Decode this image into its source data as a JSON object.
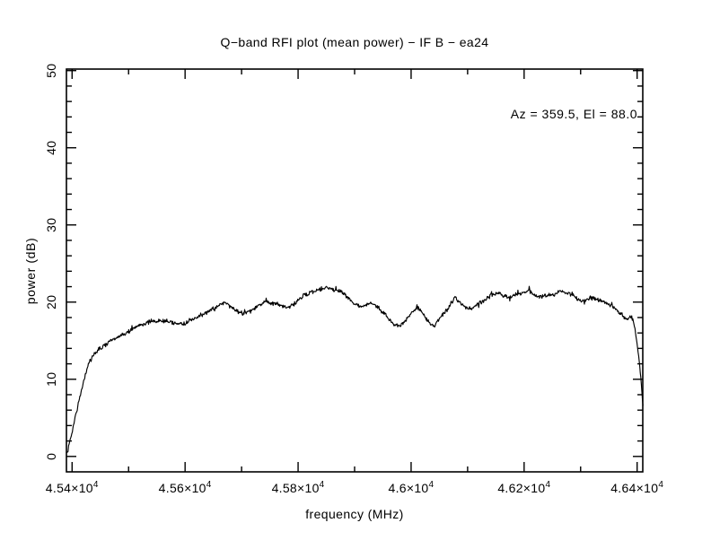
{
  "figure": {
    "background": "#ffffff",
    "ink": "#000000"
  },
  "chart_data": {
    "type": "line",
    "title": "Q−band RFI plot (mean power) − IF B − ea24",
    "xlabel": "frequency (MHz)",
    "ylabel": "power (dB)",
    "annotation": "Az = 359.5, El = 88.0",
    "grid": false,
    "legend_position": "none",
    "xlim": [
      45390,
      46410
    ],
    "ylim": [
      -2,
      50.2
    ],
    "x_major_ticks": [
      45400,
      45600,
      45800,
      46000,
      46200,
      46400
    ],
    "x_tick_labels": [
      "4.54×10^4",
      "4.56×10^4",
      "4.58×10^4",
      "4.6×10^4",
      "4.62×10^4",
      "4.64×10^4"
    ],
    "x_minor_ticks": [
      45500,
      45700,
      45900,
      46100,
      46300
    ],
    "y_major_ticks": [
      0,
      10,
      20,
      30,
      40,
      50
    ],
    "y_tick_labels": [
      "0",
      "10",
      "20",
      "30",
      "40",
      "50"
    ],
    "y_minor_step": 2,
    "series": [
      {
        "name": "mean power trace",
        "color": "#000000",
        "noise_db": 0.33,
        "points": [
          [
            45391,
            0.3
          ],
          [
            45398,
            2.6
          ],
          [
            45406,
            5.2
          ],
          [
            45414,
            7.8
          ],
          [
            45422,
            10.2
          ],
          [
            45430,
            12.1
          ],
          [
            45438,
            13.2
          ],
          [
            45446,
            13.8
          ],
          [
            45452,
            14.1
          ],
          [
            45460,
            14.5
          ],
          [
            45468,
            15.0
          ],
          [
            45476,
            15.3
          ],
          [
            45484,
            15.6
          ],
          [
            45492,
            15.9
          ],
          [
            45500,
            16.2
          ],
          [
            45510,
            16.7
          ],
          [
            45520,
            17.1
          ],
          [
            45530,
            17.3
          ],
          [
            45540,
            17.5
          ],
          [
            45550,
            17.5
          ],
          [
            45560,
            17.6
          ],
          [
            45570,
            17.5
          ],
          [
            45580,
            17.3
          ],
          [
            45590,
            17.2
          ],
          [
            45600,
            17.3
          ],
          [
            45610,
            17.6
          ],
          [
            45620,
            18.0
          ],
          [
            45630,
            18.4
          ],
          [
            45640,
            18.6
          ],
          [
            45650,
            19.1
          ],
          [
            45660,
            19.6
          ],
          [
            45670,
            20.0
          ],
          [
            45680,
            19.6
          ],
          [
            45690,
            18.9
          ],
          [
            45700,
            18.5
          ],
          [
            45710,
            18.7
          ],
          [
            45720,
            19.1
          ],
          [
            45730,
            19.6
          ],
          [
            45740,
            20.1
          ],
          [
            45750,
            20.0
          ],
          [
            45760,
            19.8
          ],
          [
            45770,
            19.5
          ],
          [
            45780,
            19.3
          ],
          [
            45790,
            19.6
          ],
          [
            45800,
            20.3
          ],
          [
            45810,
            20.8
          ],
          [
            45820,
            21.2
          ],
          [
            45830,
            21.5
          ],
          [
            45840,
            21.7
          ],
          [
            45850,
            21.9
          ],
          [
            45860,
            21.7
          ],
          [
            45870,
            21.5
          ],
          [
            45880,
            21.2
          ],
          [
            45890,
            20.4
          ],
          [
            45900,
            19.8
          ],
          [
            45910,
            19.4
          ],
          [
            45920,
            19.6
          ],
          [
            45930,
            20.0
          ],
          [
            45940,
            19.4
          ],
          [
            45950,
            18.7
          ],
          [
            45960,
            17.9
          ],
          [
            45970,
            17.0
          ],
          [
            45978,
            16.9
          ],
          [
            45986,
            17.3
          ],
          [
            45994,
            17.9
          ],
          [
            46002,
            18.7
          ],
          [
            46010,
            19.4
          ],
          [
            46018,
            18.8
          ],
          [
            46026,
            17.9
          ],
          [
            46034,
            17.1
          ],
          [
            46040,
            16.9
          ],
          [
            46048,
            17.7
          ],
          [
            46056,
            18.4
          ],
          [
            46064,
            19.0
          ],
          [
            46072,
            19.9
          ],
          [
            46078,
            20.6
          ],
          [
            46086,
            20.0
          ],
          [
            46094,
            19.5
          ],
          [
            46102,
            19.1
          ],
          [
            46110,
            19.3
          ],
          [
            46118,
            19.8
          ],
          [
            46126,
            20.1
          ],
          [
            46134,
            20.5
          ],
          [
            46142,
            20.9
          ],
          [
            46151,
            21.2
          ],
          [
            46160,
            20.9
          ],
          [
            46170,
            20.6
          ],
          [
            46180,
            20.8
          ],
          [
            46190,
            21.0
          ],
          [
            46200,
            21.3
          ],
          [
            46208,
            21.5
          ],
          [
            46216,
            21.1
          ],
          [
            46226,
            20.7
          ],
          [
            46236,
            20.8
          ],
          [
            46246,
            20.9
          ],
          [
            46256,
            21.1
          ],
          [
            46266,
            21.4
          ],
          [
            46276,
            21.2
          ],
          [
            46286,
            21.0
          ],
          [
            46294,
            20.4
          ],
          [
            46302,
            20.1
          ],
          [
            46312,
            20.3
          ],
          [
            46322,
            20.5
          ],
          [
            46332,
            20.2
          ],
          [
            46342,
            20.0
          ],
          [
            46352,
            19.6
          ],
          [
            46360,
            19.3
          ],
          [
            46368,
            18.7
          ],
          [
            46376,
            18.2
          ],
          [
            46382,
            17.8
          ],
          [
            46388,
            18.0
          ],
          [
            46392,
            17.9
          ],
          [
            46396,
            16.6
          ],
          [
            46400,
            14.6
          ],
          [
            46404,
            12.2
          ],
          [
            46407,
            9.8
          ],
          [
            46409,
            7.8
          ],
          [
            46411,
            6.0
          ]
        ]
      }
    ]
  }
}
